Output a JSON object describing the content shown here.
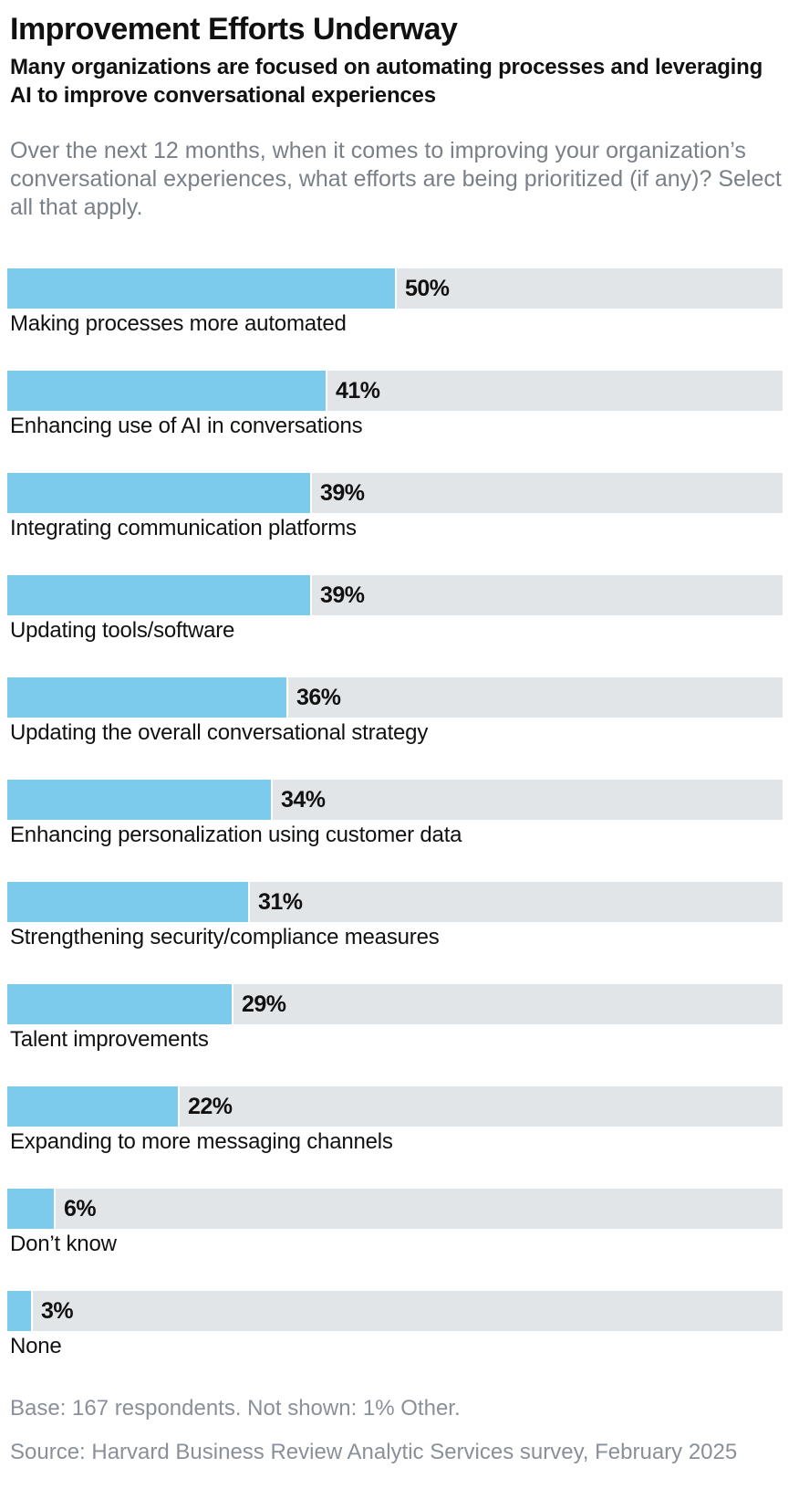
{
  "header": {
    "title": "Improvement Efforts Underway",
    "subtitle": "Many organizations are focused on automating processes and leveraging AI to improve conversational experiences",
    "question": "Over the next 12 months, when it comes to improving your organization’s conversational experiences, what efforts are being prioritized (if any)? Select all that apply."
  },
  "chart_data": {
    "type": "bar",
    "orientation": "horizontal",
    "categories": [
      "Making processes more automated",
      "Enhancing use of AI in conversations",
      "Integrating communication platforms",
      "Updating tools/software",
      "Updating the overall conversational strategy",
      "Enhancing personalization using customer data",
      "Strengthening security/compliance measures",
      "Talent improvements",
      "Expanding to more messaging channels",
      "Don’t know",
      "None"
    ],
    "values": [
      50,
      41,
      39,
      39,
      36,
      34,
      31,
      29,
      22,
      6,
      3
    ],
    "value_labels": [
      "50%",
      "41%",
      "39%",
      "39%",
      "36%",
      "34%",
      "31%",
      "29%",
      "22%",
      "6%",
      "3%"
    ],
    "xlim": [
      0,
      100
    ],
    "unit": "%",
    "grid": false,
    "colors": {
      "bar": "#7ccbec",
      "track": "#e2e5e8"
    }
  },
  "footer": {
    "base_note": "Base: 167 respondents. Not shown: 1% Other.",
    "source": "Source: Harvard Business Review Analytic Services survey, February 2025"
  }
}
